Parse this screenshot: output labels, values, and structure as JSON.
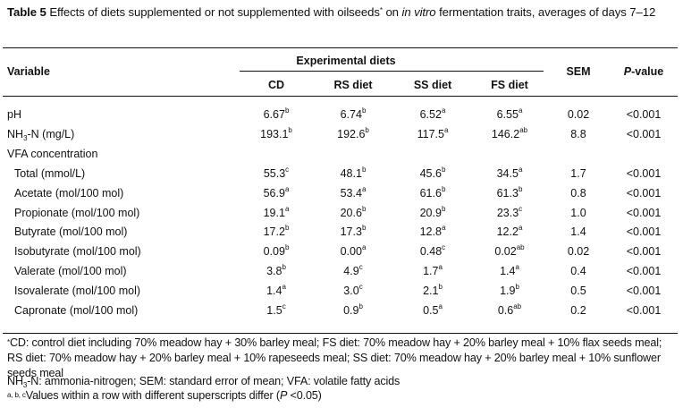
{
  "caption": {
    "label": "Table 5",
    "text_before": " Effects of diets supplemented or not supplemented with oilseeds",
    "marker": "*",
    "text_mid": " on ",
    "italic": "in vitro",
    "text_after": " fermentation traits, averages of days 7–12"
  },
  "header": {
    "variable": "Variable",
    "group": "Experimental diets",
    "columns": [
      "CD",
      "RS diet",
      "SS diet",
      "FS diet"
    ],
    "sem": "SEM",
    "pvalue_italic": "P",
    "pvalue_rest": "-value"
  },
  "rows": [
    {
      "label": "pH",
      "values": [
        [
          "6.67",
          "b"
        ],
        [
          "6.74",
          "b"
        ],
        [
          "6.52",
          "a"
        ],
        [
          "6.55",
          "a"
        ]
      ],
      "sem": "0.02",
      "p": "<0.001"
    },
    {
      "label_pre": "NH",
      "label_sub": "3",
      "label_post": "-N (mg/L)",
      "values": [
        [
          "193.1",
          "b"
        ],
        [
          "192.6",
          "b"
        ],
        [
          "117.5",
          "a"
        ],
        [
          "146.2",
          "ab"
        ]
      ],
      "sem": "8.8",
      "p": "<0.001"
    },
    {
      "label": "VFA concentration"
    },
    {
      "label": "Total (mmol/L)",
      "values": [
        [
          "55.3",
          "c"
        ],
        [
          "48.1",
          "b"
        ],
        [
          "45.6",
          "b"
        ],
        [
          "34.5",
          "a"
        ]
      ],
      "sem": "1.7",
      "p": "<0.001"
    },
    {
      "label": "Acetate (mol/100 mol)",
      "values": [
        [
          "56.9",
          "a"
        ],
        [
          "53.4",
          "a"
        ],
        [
          "61.6",
          "b"
        ],
        [
          "61.3",
          "b"
        ]
      ],
      "sem": "0.8",
      "p": "<0.001"
    },
    {
      "label": "Propionate (mol/100 mol)",
      "values": [
        [
          "19.1",
          "a"
        ],
        [
          "20.6",
          "b"
        ],
        [
          "20.9",
          "b"
        ],
        [
          "23.3",
          "c"
        ]
      ],
      "sem": "1.0",
      "p": "<0.001"
    },
    {
      "label": "Butyrate (mol/100 mol)",
      "values": [
        [
          "17.2",
          "b"
        ],
        [
          "17.3",
          "b"
        ],
        [
          "12.8",
          "a"
        ],
        [
          "12.2",
          "a"
        ]
      ],
      "sem": "1.4",
      "p": "<0.001"
    },
    {
      "label": "Isobutyrate (mol/100 mol)",
      "values": [
        [
          "0.09",
          "b"
        ],
        [
          "0.00",
          "a"
        ],
        [
          "0.48",
          "c"
        ],
        [
          "0.02",
          "ab"
        ]
      ],
      "sem": "0.02",
      "p": "<0.001"
    },
    {
      "label": "Valerate (mol/100 mol)",
      "values": [
        [
          "3.8",
          "b"
        ],
        [
          "4.9",
          "c"
        ],
        [
          "1.7",
          "a"
        ],
        [
          "1.4",
          "a"
        ]
      ],
      "sem": "0.4",
      "p": "<0.001"
    },
    {
      "label": "Isovalerate (mol/100 mol)",
      "values": [
        [
          "1.4",
          "a"
        ],
        [
          "3.0",
          "c"
        ],
        [
          "2.1",
          "b"
        ],
        [
          "1.9",
          "b"
        ]
      ],
      "sem": "0.5",
      "p": "<0.001"
    },
    {
      "label": "Capronate (mol/100 mol)",
      "values": [
        [
          "1.5",
          "c"
        ],
        [
          "0.9",
          "b"
        ],
        [
          "0.5",
          "a"
        ],
        [
          "0.6",
          "ab"
        ]
      ],
      "sem": "0.2",
      "p": "<0.001"
    }
  ],
  "footnotes": {
    "diet_marker": "*",
    "diet_text": "CD: control diet including 70% meadow hay + 30% barley meal; FS diet: 70% meadow hay + 20% barley meal + 10% flax seeds meal; RS diet: 70% meadow hay + 20% barley meal + 10% rapeseeds meal; SS diet: 70% meadow hay + 20% barley meal + 10% sunflower seeds meal",
    "abbr_pre": "NH",
    "abbr_sub": "3",
    "abbr_post": "-N: ammonia-nitrogen; SEM: standard error of mean; VFA: volatile fatty acids",
    "sig_marker": "a, b, c",
    "sig_text": "Values within a row with different superscripts differ (",
    "sig_italic": "P",
    "sig_end": " <0.05)"
  }
}
